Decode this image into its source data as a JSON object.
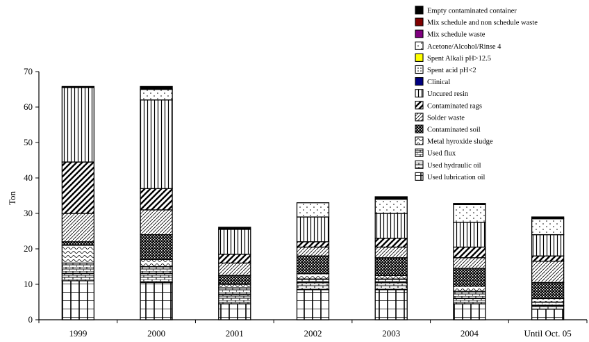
{
  "chart_data": {
    "type": "bar",
    "stacked": true,
    "categories": [
      "1999",
      "2000",
      "2001",
      "2002",
      "2003",
      "2004",
      "Until Oct. 05"
    ],
    "ylabel": "Ton",
    "ylim": [
      0,
      70
    ],
    "yticks": [
      0,
      10,
      20,
      30,
      40,
      50,
      60,
      70
    ],
    "grid": false,
    "legend_position": "top-right",
    "series": [
      {
        "name": "Used lubrication oil",
        "pattern": "grid",
        "color": "#ffffff",
        "values": [
          11,
          10.5,
          4.5,
          8.5,
          8.5,
          4.5,
          3
        ]
      },
      {
        "name": "Used hydraulic oil",
        "pattern": "brick",
        "color": "#ffffff",
        "values": [
          2,
          2.5,
          2.5,
          2,
          2,
          1.5,
          1
        ]
      },
      {
        "name": "Used flux",
        "pattern": "brick2",
        "color": "#ffffff",
        "values": [
          3,
          2,
          2,
          1,
          1,
          2,
          1
        ]
      },
      {
        "name": "Metal hyroxide sludge",
        "pattern": "scale",
        "color": "#ffffff",
        "values": [
          5,
          2,
          1,
          1.5,
          1,
          1.5,
          1
        ]
      },
      {
        "name": "Contaminated soil",
        "pattern": "checker",
        "color": "#ffffff",
        "values": [
          1,
          7,
          2.5,
          5,
          5,
          5,
          4.5
        ]
      },
      {
        "name": "Solder waste",
        "pattern": "diagonal-fine",
        "color": "#ffffff",
        "values": [
          8,
          7,
          3.5,
          2.5,
          3,
          3,
          6
        ]
      },
      {
        "name": "Contaminated rags",
        "pattern": "diagonal-bold",
        "color": "#ffffff",
        "values": [
          14.5,
          6,
          2.5,
          1.5,
          2.5,
          3,
          1.5
        ]
      },
      {
        "name": "Uncured resin",
        "pattern": "vertical",
        "color": "#ffffff",
        "values": [
          21,
          25,
          7,
          7,
          7,
          7,
          6
        ]
      },
      {
        "name": "Clinical",
        "pattern": "solid",
        "color": "#000080",
        "values": [
          0,
          0,
          0,
          0,
          0,
          0,
          0
        ]
      },
      {
        "name": "Spent acid pH<2",
        "pattern": "dots-box",
        "color": "#ffffff",
        "values": [
          0,
          0,
          0,
          0,
          0,
          0,
          0
        ]
      },
      {
        "name": "Spent Alkali pH>12.5",
        "pattern": "solid",
        "color": "#ffff00",
        "values": [
          0,
          0,
          0,
          0,
          0,
          0,
          0
        ]
      },
      {
        "name": "Acetone/Alcohol/Rinse 4",
        "pattern": "dots",
        "color": "#ffffff",
        "values": [
          0,
          3,
          0,
          4,
          4,
          5,
          4.5
        ]
      },
      {
        "name": "Mix schedule waste",
        "pattern": "solid",
        "color": "#800080",
        "values": [
          0,
          0,
          0,
          0,
          0,
          0,
          0
        ]
      },
      {
        "name": "Mix schedule and non schedule waste",
        "pattern": "solid",
        "color": "#800000",
        "values": [
          0,
          0,
          0,
          0,
          0,
          0,
          0
        ]
      },
      {
        "name": "Empty contaminated container",
        "pattern": "solid",
        "color": "#000000",
        "values": [
          0.3,
          0.8,
          0.6,
          0,
          0.7,
          0.3,
          0.5
        ]
      }
    ],
    "legend_order": [
      "Empty contaminated container",
      "Mix schedule and non schedule waste",
      "Mix schedule waste",
      "Acetone/Alcohol/Rinse 4",
      "Spent Alkali pH>12.5",
      "Spent acid pH<2",
      "Clinical",
      "Uncured resin",
      "Contaminated rags",
      "Solder waste",
      "Contaminated soil",
      "Metal hyroxide sludge",
      "Used flux",
      "Used hydraulic oil",
      "Used lubrication oil"
    ]
  }
}
